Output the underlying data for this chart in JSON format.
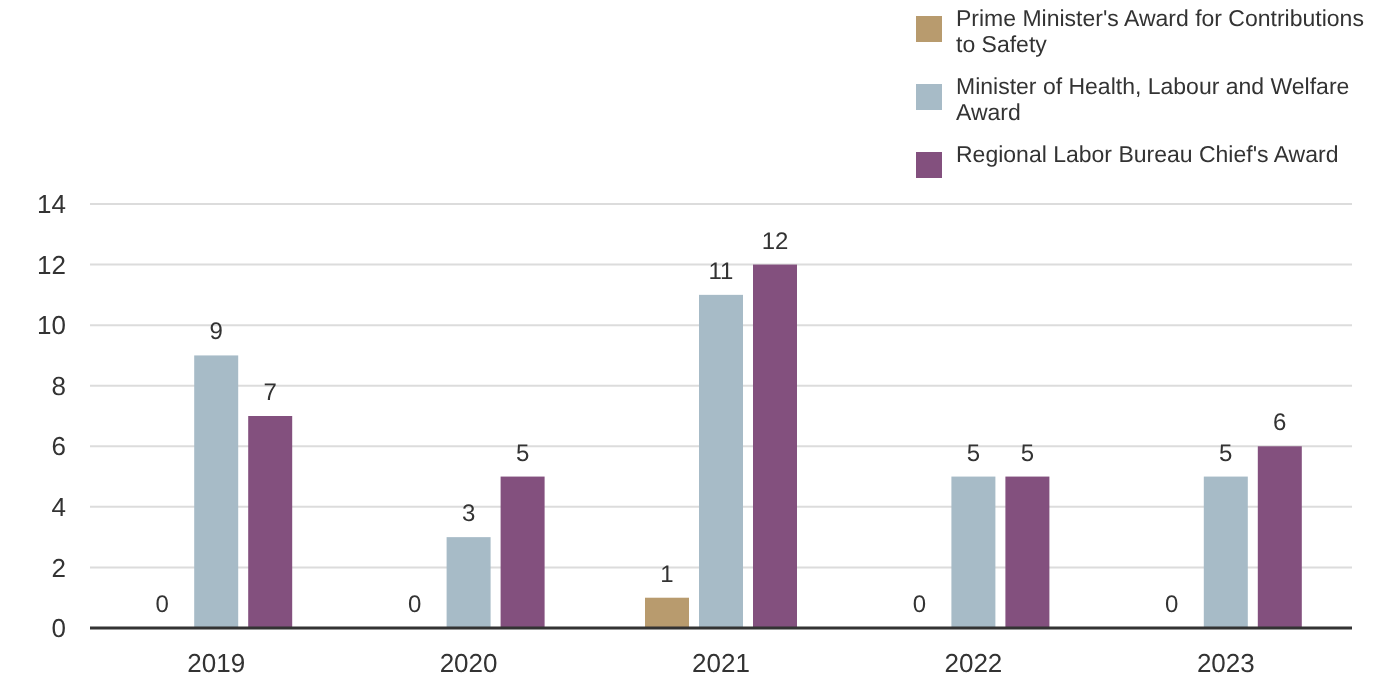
{
  "chart_data": {
    "type": "bar",
    "categories": [
      "2019",
      "2020",
      "2021",
      "2022",
      "2023"
    ],
    "series": [
      {
        "name": "Prime Minister's Award for Contributions to Safety",
        "color": "#b89b6e",
        "values": [
          0,
          0,
          1,
          0,
          0
        ]
      },
      {
        "name": "Minister of Health, Labour and Welfare Award",
        "color": "#a7bbc7",
        "values": [
          9,
          3,
          11,
          5,
          5
        ]
      },
      {
        "name": "Regional Labor Bureau Chief's Award",
        "color": "#83507e",
        "values": [
          7,
          5,
          12,
          5,
          6
        ]
      }
    ],
    "ylim": [
      0,
      14
    ],
    "yticks": [
      0,
      2,
      4,
      6,
      8,
      10,
      12,
      14
    ],
    "grid": "y",
    "legend": "top right",
    "data_labels": true
  }
}
